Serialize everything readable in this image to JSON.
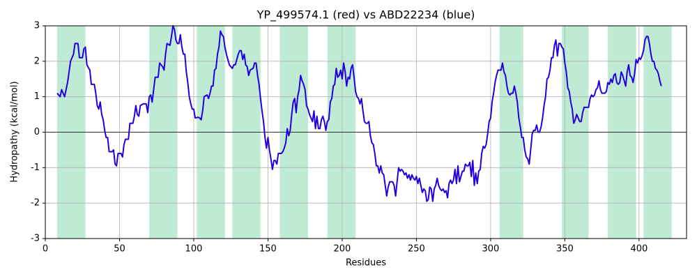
{
  "chart_data": {
    "type": "line",
    "title": "YP_499574.1 (red) vs ABD22234 (blue)",
    "xlabel": "Residues",
    "ylabel": "Hydropathy (kcal/mol)",
    "xlim": [
      0,
      432
    ],
    "ylim": [
      -3,
      3
    ],
    "xticks": [
      0,
      50,
      100,
      150,
      200,
      250,
      300,
      350,
      400
    ],
    "yticks": [
      -3,
      -2,
      -1,
      0,
      1,
      2,
      3
    ],
    "grid": true,
    "hline": 0,
    "span_color": "#bfead3",
    "spans": [
      [
        8,
        27
      ],
      [
        70,
        89
      ],
      [
        102,
        121
      ],
      [
        126,
        145
      ],
      [
        158,
        177
      ],
      [
        190,
        209
      ],
      [
        306,
        322
      ],
      [
        348,
        366
      ],
      [
        379,
        398
      ],
      [
        403,
        422
      ]
    ],
    "color": "#2200dd",
    "x": [
      8,
      10,
      11,
      13,
      15,
      17,
      19,
      20,
      22,
      23,
      25,
      26,
      27,
      28,
      30,
      31,
      33,
      34,
      35,
      36,
      37,
      38,
      39,
      40,
      41,
      42,
      43,
      45,
      46,
      47,
      48,
      49,
      51,
      52,
      53,
      54,
      56,
      57,
      59,
      60,
      61,
      62,
      63,
      64,
      66,
      68,
      69,
      70,
      71,
      72,
      73,
      74,
      76,
      77,
      79,
      80,
      81,
      82,
      84,
      85,
      86,
      87,
      88,
      89,
      90,
      91,
      92,
      93,
      94,
      95,
      96,
      97,
      98,
      99,
      100,
      101,
      103,
      104,
      105,
      106,
      107,
      109,
      110,
      111,
      112,
      113,
      114,
      115,
      116,
      117,
      118,
      119,
      120,
      121,
      122,
      123,
      124,
      125,
      126,
      127,
      128,
      129,
      130,
      131,
      132,
      133,
      134,
      135,
      136,
      137,
      138,
      139,
      140,
      141,
      142,
      143,
      144,
      145,
      146,
      147,
      148,
      149,
      150,
      151,
      152,
      153,
      154,
      155,
      156,
      157,
      158,
      159,
      160,
      161,
      162,
      163,
      164,
      165,
      166,
      167,
      168,
      169,
      170,
      171,
      172,
      173,
      174,
      175,
      176,
      177,
      178,
      179,
      180,
      181,
      182,
      183,
      184,
      185,
      186,
      187,
      188,
      189,
      190,
      191,
      192,
      193,
      194,
      195,
      196,
      197,
      198,
      199,
      200,
      201,
      202,
      203,
      204,
      205,
      206,
      207,
      208,
      209,
      210,
      211,
      212,
      213,
      214,
      215,
      216,
      217,
      218,
      219,
      220,
      221,
      222,
      223,
      224,
      225,
      226,
      227,
      228,
      229,
      230,
      231,
      232,
      233,
      234,
      235,
      236,
      237,
      238,
      239,
      240,
      241,
      242,
      243,
      244,
      245,
      246,
      247,
      248,
      249,
      250,
      251,
      252,
      253,
      254,
      255,
      256,
      257,
      258,
      259,
      260,
      261,
      262,
      263,
      264,
      265,
      266,
      267,
      268,
      269,
      270,
      271,
      272,
      273,
      274,
      275,
      276,
      277,
      278,
      279,
      280,
      281,
      282,
      283,
      284,
      285,
      286,
      287,
      288,
      289,
      290,
      291,
      292,
      293,
      294,
      295,
      296,
      297,
      298,
      299,
      300,
      301,
      302,
      303,
      304,
      305,
      306,
      307,
      308,
      309,
      310,
      311,
      312,
      313,
      314,
      315,
      316,
      317,
      318,
      319,
      320,
      321,
      322,
      323,
      324,
      325,
      326,
      327,
      328,
      329,
      330,
      331,
      332,
      333,
      334,
      335,
      336,
      337,
      338,
      339,
      340,
      341,
      342,
      343,
      344,
      345,
      346,
      347,
      348,
      349,
      350,
      351,
      352,
      353,
      354,
      355,
      356,
      357,
      358,
      359,
      360,
      361,
      362,
      363,
      364,
      365,
      366,
      367,
      368,
      369,
      370,
      371,
      372,
      373,
      374,
      375,
      376,
      377,
      378,
      379,
      380,
      381,
      382,
      383,
      384,
      385,
      386,
      387,
      388,
      389,
      390,
      391,
      392,
      393,
      394,
      395,
      396,
      397,
      398,
      399,
      400,
      401,
      402,
      403,
      404,
      405,
      406,
      407,
      408,
      409,
      410,
      411,
      412,
      413,
      414,
      415
    ],
    "values": [
      1.1,
      1.0,
      1.2,
      1.0,
      1.4,
      2.0,
      2.2,
      2.5,
      2.5,
      2.1,
      2.1,
      2.35,
      2.4,
      1.9,
      1.75,
      1.35,
      1.35,
      1.1,
      0.75,
      0.65,
      0.85,
      0.5,
      0.35,
      0.05,
      -0.15,
      -0.15,
      -0.55,
      -0.55,
      -0.5,
      -0.9,
      -0.95,
      -0.6,
      -0.6,
      -0.7,
      -0.35,
      -0.2,
      -0.2,
      0.25,
      0.25,
      0.45,
      0.75,
      0.5,
      0.45,
      0.75,
      0.8,
      0.8,
      0.55,
      1.0,
      1.05,
      0.85,
      1.2,
      1.55,
      1.55,
      1.95,
      1.85,
      1.75,
      2.2,
      2.5,
      2.45,
      2.7,
      3.0,
      2.9,
      2.6,
      2.5,
      2.5,
      2.75,
      2.4,
      2.2,
      2.2,
      1.7,
      1.4,
      1.0,
      0.8,
      0.65,
      0.65,
      0.4,
      0.42,
      0.4,
      0.35,
      0.6,
      1.0,
      1.05,
      0.95,
      1.1,
      1.3,
      1.3,
      1.75,
      1.8,
      2.2,
      2.4,
      2.85,
      2.75,
      2.7,
      2.4,
      2.2,
      2.05,
      1.9,
      1.85,
      1.8,
      1.9,
      1.9,
      2.05,
      2.2,
      2.3,
      2.3,
      2.05,
      2.2,
      1.9,
      1.85,
      1.6,
      1.75,
      1.78,
      1.8,
      1.95,
      1.95,
      1.6,
      1.35,
      0.95,
      0.6,
      0.3,
      -0.15,
      -0.45,
      -0.15,
      -0.5,
      -0.75,
      -1.05,
      -0.8,
      -0.8,
      -0.9,
      -0.6,
      -0.6,
      -0.6,
      -0.55,
      -0.45,
      -0.3,
      0.1,
      -0.1,
      0.05,
      0.5,
      0.85,
      0.95,
      0.55,
      1.0,
      1.2,
      1.6,
      1.45,
      1.35,
      1.2,
      0.75,
      0.65,
      0.5,
      0.4,
      0.3,
      0.6,
      0.1,
      0.45,
      0.1,
      0.1,
      0.35,
      0.45,
      0.3,
      0.05,
      0.3,
      0.35,
      0.85,
      0.95,
      1.3,
      1.35,
      1.8,
      1.55,
      1.6,
      1.75,
      1.5,
      1.95,
      1.7,
      1.3,
      1.55,
      1.5,
      1.8,
      1.9,
      1.55,
      1.15,
      1.0,
      0.95,
      0.8,
      0.95,
      0.6,
      0.3,
      0.25,
      0.25,
      0.3,
      -0.1,
      -0.3,
      -0.35,
      -0.6,
      -0.95,
      -0.95,
      -1.15,
      -0.95,
      -1.15,
      -1.2,
      -1.5,
      -1.8,
      -1.55,
      -1.4,
      -1.4,
      -1.4,
      -1.5,
      -1.8,
      -1.4,
      -1.0,
      -1.1,
      -1.05,
      -1.1,
      -1.2,
      -1.15,
      -1.3,
      -1.2,
      -1.35,
      -1.2,
      -1.3,
      -1.35,
      -1.25,
      -1.45,
      -1.3,
      -1.5,
      -1.7,
      -1.6,
      -1.65,
      -1.95,
      -1.9,
      -1.55,
      -1.6,
      -1.95,
      -1.6,
      -1.5,
      -1.3,
      -1.5,
      -1.6,
      -1.65,
      -1.6,
      -1.7,
      -1.65,
      -1.85,
      -1.45,
      -1.35,
      -1.45,
      -1.35,
      -1.05,
      -1.45,
      -0.95,
      -1.4,
      -1.25,
      -1.1,
      -1.1,
      -0.9,
      -0.95,
      -0.95,
      -0.85,
      -1.25,
      -0.8,
      -1.5,
      -1.15,
      -1.45,
      -1.1,
      -1.05,
      -0.6,
      -0.4,
      -0.45,
      -0.35,
      -0.05,
      0.3,
      0.4,
      0.85,
      1.1,
      1.4,
      1.6,
      1.75,
      1.75,
      1.75,
      1.95,
      1.7,
      1.6,
      1.3,
      1.1,
      1.05,
      1.1,
      1.1,
      1.3,
      1.1,
      0.85,
      0.4,
      0.15,
      -0.15,
      -0.15,
      -0.5,
      -0.7,
      -0.75,
      -0.9,
      -0.5,
      -0.05,
      0.05,
      0.05,
      0.2,
      0.0,
      0.0,
      0.15,
      0.4,
      0.75,
      1.0,
      1.5,
      1.55,
      1.75,
      2.1,
      2.1,
      2.45,
      2.6,
      2.15,
      2.5,
      2.5,
      2.4,
      2.35,
      1.95,
      1.7,
      1.25,
      1.15,
      0.85,
      0.65,
      0.25,
      0.35,
      0.5,
      0.4,
      0.3,
      0.3,
      0.55,
      0.7,
      0.7,
      0.7,
      0.7,
      0.95,
      1.05,
      1.0,
      1.05,
      1.2,
      1.25,
      1.45,
      1.2,
      1.1,
      1.1,
      1.1,
      1.15,
      1.4,
      1.35,
      1.5,
      1.4,
      1.6,
      1.65,
      1.4,
      1.35,
      1.4,
      1.7,
      1.6,
      1.45,
      1.3,
      1.7,
      1.9,
      1.6,
      1.55,
      1.4,
      1.65,
      2.05,
      1.95,
      2.1,
      2.05,
      2.15,
      2.3,
      2.6,
      2.7,
      2.7,
      2.5,
      2.2,
      2.0,
      2.0,
      1.8,
      1.75,
      1.65,
      1.45,
      1.3
    ]
  }
}
